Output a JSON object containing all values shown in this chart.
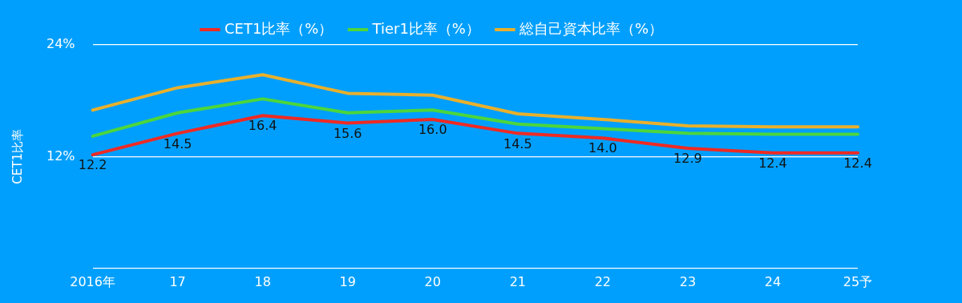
{
  "chart_data": {
    "type": "line",
    "ylabel": "CET1比率",
    "categories": [
      "2016年",
      "17",
      "18",
      "19",
      "20",
      "21",
      "22",
      "23",
      "24",
      "25予"
    ],
    "series": [
      {
        "name": "CET1比率（%）",
        "color": "#ee2a24",
        "values": [
          12.2,
          14.5,
          16.4,
          15.6,
          16.0,
          14.5,
          14.0,
          12.9,
          12.4,
          12.4
        ],
        "value_labels": [
          "12.2",
          "14.5",
          "16.4",
          "15.6",
          "16.0",
          "14.5",
          "14.0",
          "12.9",
          "12.4",
          "12.4"
        ]
      },
      {
        "name": "Tier1比率（%）",
        "color": "#4cd63c",
        "values": [
          14.2,
          16.7,
          18.2,
          16.7,
          17.0,
          15.5,
          15.0,
          14.5,
          14.4,
          14.4
        ]
      },
      {
        "name": "総自己資本比率（%）",
        "color": "#e8b02c",
        "values": [
          17.0,
          19.4,
          20.8,
          18.8,
          18.6,
          16.6,
          16.0,
          15.3,
          15.2,
          15.2
        ]
      }
    ],
    "ylim": [
      0,
      24
    ],
    "yticks": [
      {
        "value": 0,
        "label": null
      },
      {
        "value": 12,
        "label": "12%"
      },
      {
        "value": 24,
        "label": "24%"
      }
    ],
    "grid": "y",
    "legend": "top",
    "marker": "none",
    "line_style": "solid"
  }
}
